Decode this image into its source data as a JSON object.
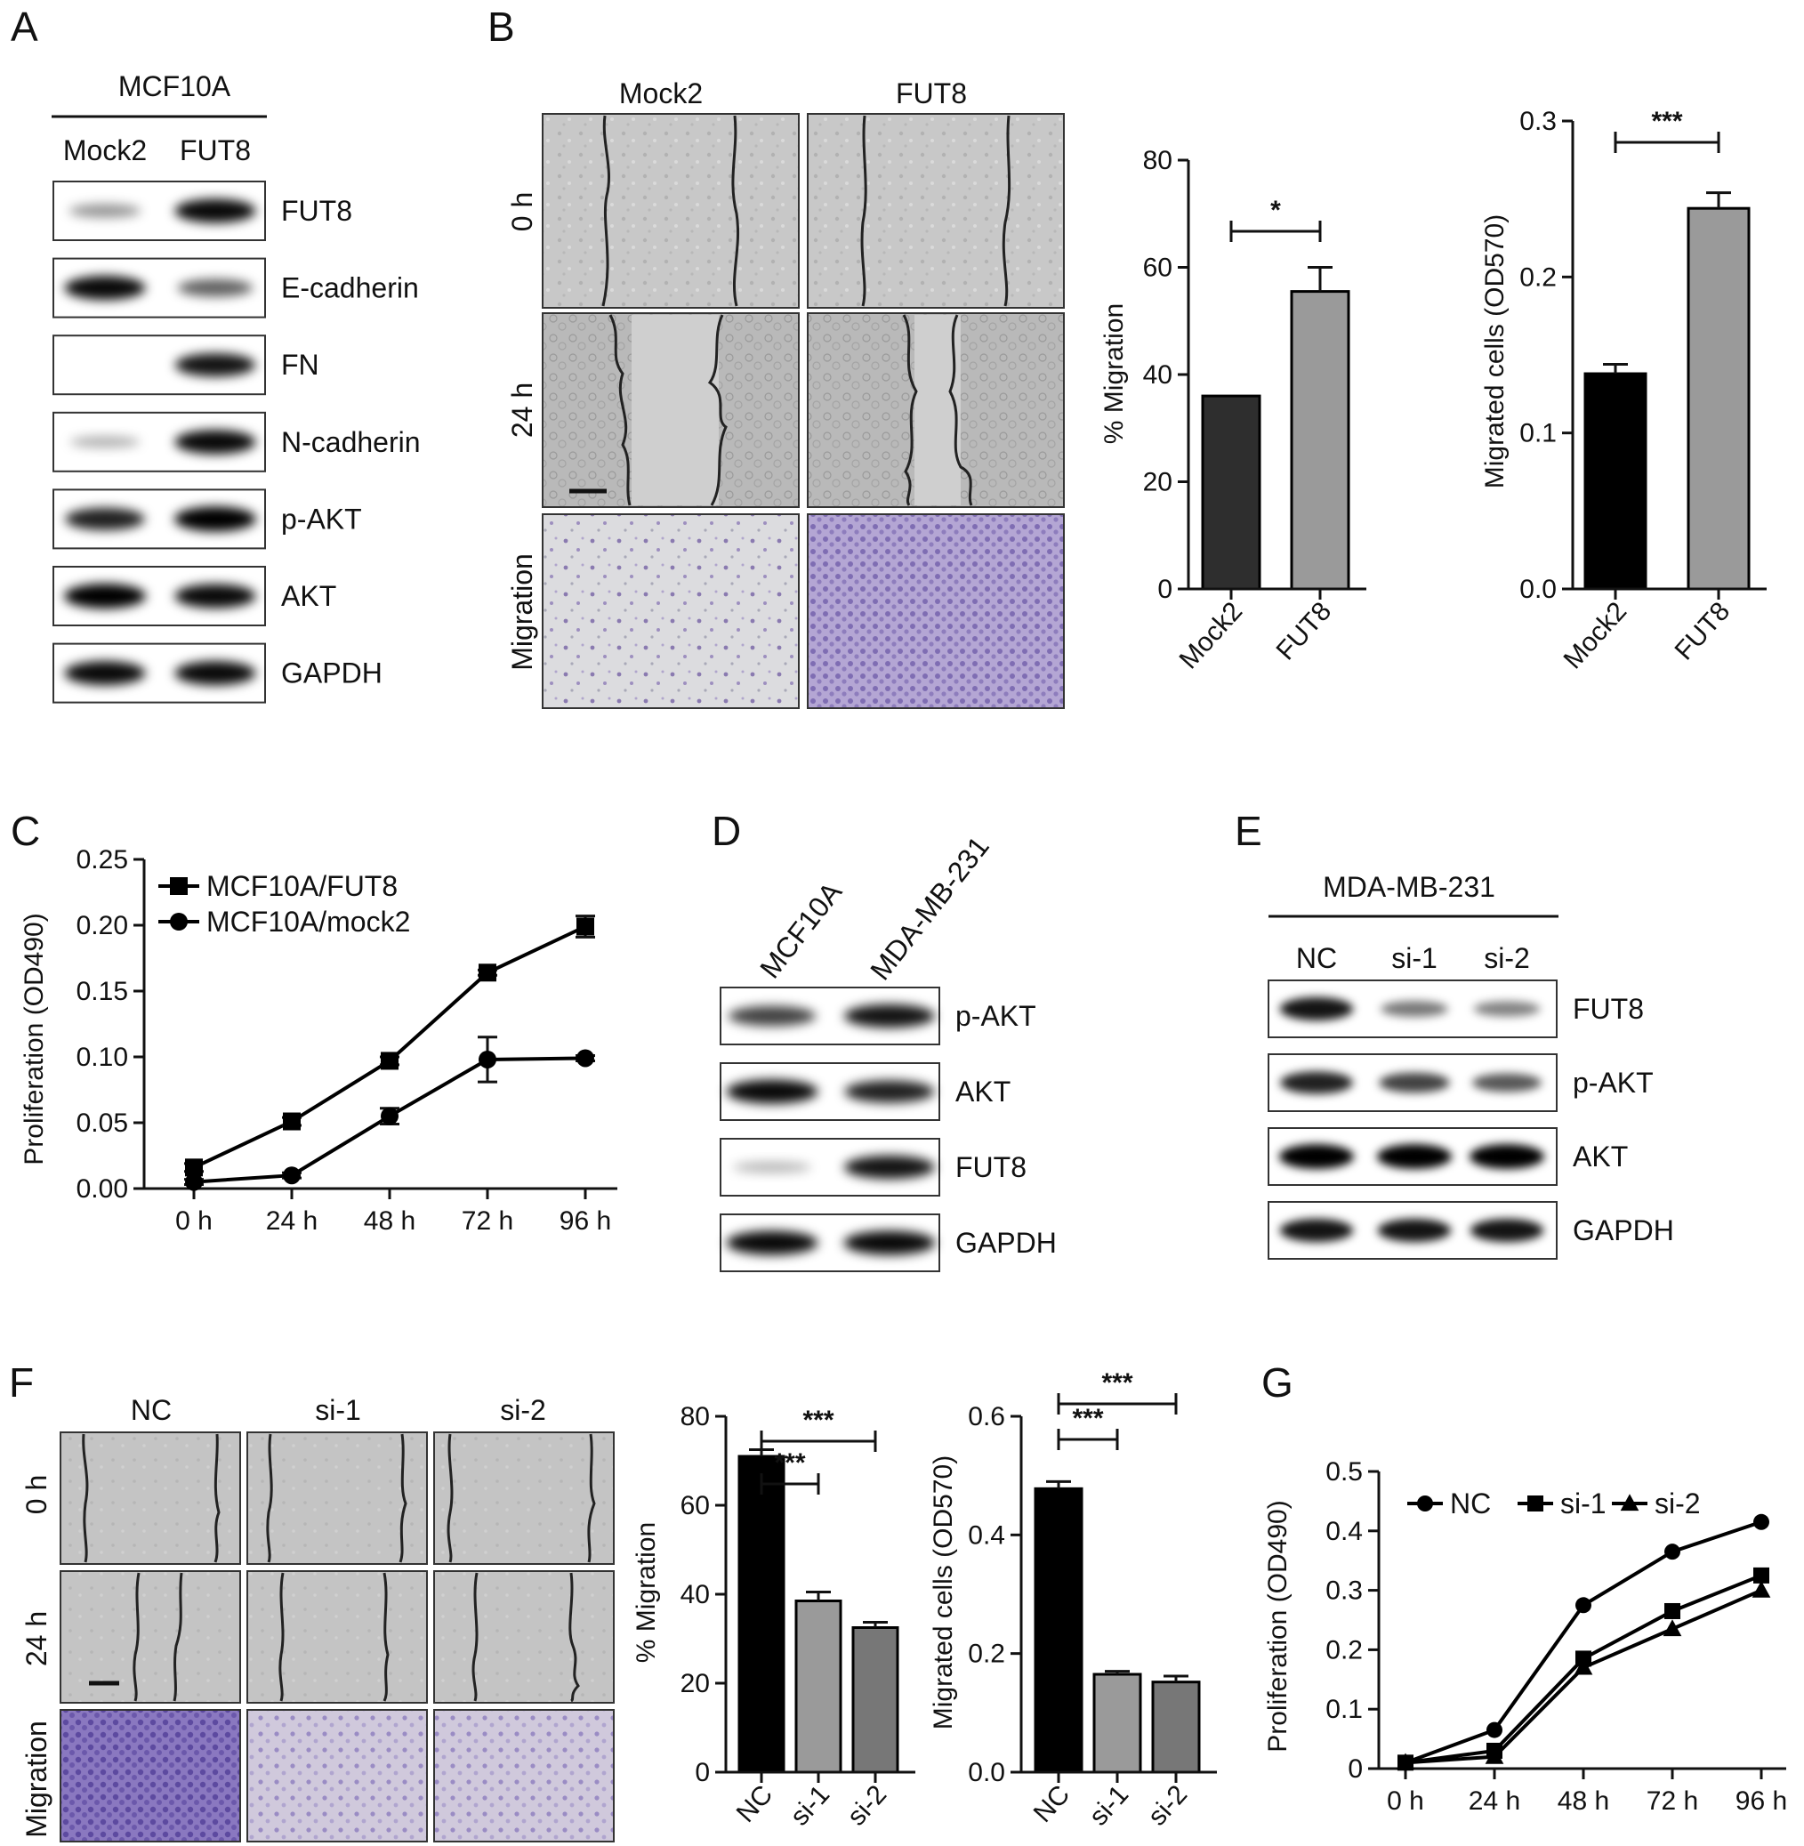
{
  "panels": {
    "A": "A",
    "B": "B",
    "C": "C",
    "D": "D",
    "E": "E",
    "F": "F",
    "G": "G"
  },
  "blotA": {
    "header": "MCF10A",
    "lanes": [
      "Mock2",
      "FUT8"
    ],
    "rows": [
      {
        "label": "FUT8",
        "intensity": [
          0.3,
          0.95
        ]
      },
      {
        "label": "E-cadherin",
        "intensity": [
          0.95,
          0.55
        ]
      },
      {
        "label": "FN",
        "intensity": [
          0.0,
          0.9
        ]
      },
      {
        "label": "N-cadherin",
        "intensity": [
          0.18,
          0.95
        ]
      },
      {
        "label": "p-AKT",
        "intensity": [
          0.85,
          1.0
        ]
      },
      {
        "label": "AKT",
        "intensity": [
          1.0,
          0.95
        ]
      },
      {
        "label": "GAPDH",
        "intensity": [
          0.95,
          0.95
        ]
      }
    ]
  },
  "microB": {
    "cols": [
      "Mock2",
      "FUT8"
    ],
    "rows": [
      "0 h",
      "24 h",
      "Migration"
    ]
  },
  "blotD": {
    "lanes": [
      "MCF10A",
      "MDA-MB-231"
    ],
    "rows": [
      {
        "label": "p-AKT",
        "intensity": [
          0.7,
          0.9
        ]
      },
      {
        "label": "AKT",
        "intensity": [
          0.95,
          0.85
        ]
      },
      {
        "label": "FUT8",
        "intensity": [
          0.15,
          0.9
        ]
      },
      {
        "label": "GAPDH",
        "intensity": [
          0.95,
          0.95
        ]
      }
    ]
  },
  "blotE": {
    "header": "MDA-MB-231",
    "lanes": [
      "NC",
      "si-1",
      "si-2"
    ],
    "rows": [
      {
        "label": "FUT8",
        "intensity": [
          0.9,
          0.45,
          0.4
        ]
      },
      {
        "label": "p-AKT",
        "intensity": [
          0.85,
          0.7,
          0.6
        ]
      },
      {
        "label": "AKT",
        "intensity": [
          1.0,
          1.0,
          1.0
        ]
      },
      {
        "label": "GAPDH",
        "intensity": [
          0.9,
          0.9,
          0.9
        ]
      }
    ]
  },
  "microF": {
    "cols": [
      "NC",
      "si-1",
      "si-2"
    ],
    "rows": [
      "0 h",
      "24 h",
      "Migration"
    ]
  },
  "chart_data": [
    {
      "id": "B-migration",
      "type": "bar",
      "categories": [
        "Mock2",
        "FUT8"
      ],
      "values": [
        36,
        55.5
      ],
      "errors": [
        0,
        4.5
      ],
      "colors": [
        "#2e2e2e",
        "#9a9a9a"
      ],
      "ylabel": "% Migration",
      "ylim": [
        0,
        80
      ],
      "yticks": [
        "0",
        "20",
        "40",
        "60",
        "80"
      ],
      "significance": [
        {
          "from": 0,
          "to": 1,
          "label": "*"
        }
      ]
    },
    {
      "id": "B-migrated-cells",
      "type": "bar",
      "categories": [
        "Mock2",
        "FUT8"
      ],
      "values": [
        0.138,
        0.244
      ],
      "errors": [
        0.006,
        0.01
      ],
      "colors": [
        "#000000",
        "#9a9a9a"
      ],
      "ylabel": "Migrated cells (OD570)",
      "ylim": [
        0,
        0.3
      ],
      "yticks": [
        "0.0",
        "0.1",
        "0.2",
        "0.3"
      ],
      "significance": [
        {
          "from": 0,
          "to": 1,
          "label": "***"
        }
      ]
    },
    {
      "id": "C-proliferation",
      "type": "line",
      "x": [
        "0 h",
        "24 h",
        "48 h",
        "72 h",
        "96 h"
      ],
      "ylabel": "Proliferation (OD490)",
      "ylim": [
        0,
        0.25
      ],
      "yticks": [
        "0.00",
        "0.05",
        "0.10",
        "0.15",
        "0.20",
        "0.25"
      ],
      "legend": "top-left",
      "series": [
        {
          "name": "MCF10A/FUT8",
          "marker": "square",
          "values": [
            0.016,
            0.051,
            0.097,
            0.164,
            0.199
          ],
          "errors": [
            0.003,
            0.003,
            0.003,
            0.002,
            0.008
          ]
        },
        {
          "name": "MCF10A/mock2",
          "marker": "circle",
          "values": [
            0.005,
            0.01,
            0.055,
            0.098,
            0.099
          ],
          "errors": [
            0.002,
            0.002,
            0.006,
            0.017,
            0.002
          ]
        }
      ]
    },
    {
      "id": "F-migration",
      "type": "bar",
      "categories": [
        "NC",
        "si-1",
        "si-2"
      ],
      "values": [
        71,
        38.5,
        32.5
      ],
      "errors": [
        1.5,
        2.0,
        1.2
      ],
      "colors": [
        "#000000",
        "#9a9a9a",
        "#777777"
      ],
      "ylabel": "% Migration",
      "ylim": [
        0,
        80
      ],
      "yticks": [
        "0",
        "20",
        "40",
        "60",
        "80"
      ],
      "significance": [
        {
          "from": 0,
          "to": 1,
          "label": "***"
        },
        {
          "from": 0,
          "to": 2,
          "label": "***"
        }
      ]
    },
    {
      "id": "F-migrated-cells",
      "type": "bar",
      "categories": [
        "NC",
        "si-1",
        "si-2"
      ],
      "values": [
        0.478,
        0.165,
        0.152
      ],
      "errors": [
        0.012,
        0.005,
        0.01
      ],
      "colors": [
        "#000000",
        "#9a9a9a",
        "#777777"
      ],
      "ylabel": "Migrated cells (OD570)",
      "ylim": [
        0,
        0.6
      ],
      "yticks": [
        "0.0",
        "0.2",
        "0.4",
        "0.6"
      ],
      "significance": [
        {
          "from": 0,
          "to": 1,
          "label": "***"
        },
        {
          "from": 0,
          "to": 2,
          "label": "***"
        }
      ]
    },
    {
      "id": "G-proliferation",
      "type": "line",
      "x": [
        "0 h",
        "24 h",
        "48 h",
        "72 h",
        "96 h"
      ],
      "ylabel": "Proliferation (OD490)",
      "ylim": [
        0,
        0.5
      ],
      "yticks": [
        "0",
        "0.1",
        "0.2",
        "0.3",
        "0.4",
        "0.5"
      ],
      "legend": "top",
      "series": [
        {
          "name": "NC",
          "marker": "circle",
          "values": [
            0.01,
            0.065,
            0.275,
            0.365,
            0.415
          ]
        },
        {
          "name": "si-1",
          "marker": "square",
          "values": [
            0.01,
            0.03,
            0.185,
            0.265,
            0.325
          ]
        },
        {
          "name": "si-2",
          "marker": "triangle",
          "values": [
            0.01,
            0.02,
            0.17,
            0.235,
            0.3
          ]
        }
      ]
    }
  ]
}
